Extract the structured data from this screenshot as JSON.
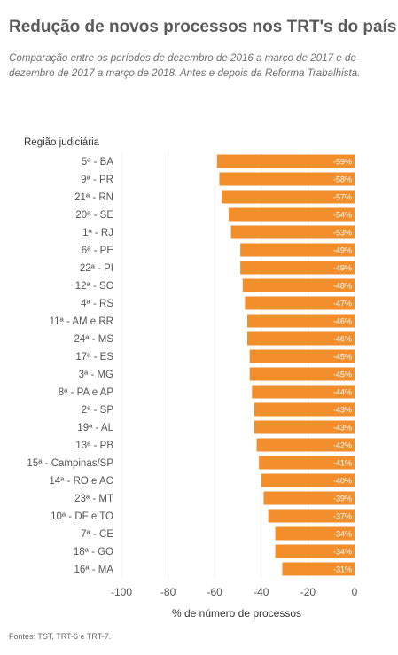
{
  "title": "Redução de novos processos nos TRT's do país",
  "subtitle": "Comparação entre os períodos de dezembro de 2016 a março de 2017 e de dezembro de 2017 a março de 2018. Antes e depois da Reforma Trabalhista.",
  "source": "Fontes: TST, TRT-6 e TRT-7.",
  "colors": {
    "bar": "#f28e2b",
    "bar_label": "#ffffff",
    "text": "#555555",
    "grid": "#eeeeee"
  },
  "chart_data": {
    "type": "bar",
    "orientation": "horizontal",
    "category_axis_title": "Região judiciária",
    "xlabel": "% de número de processos",
    "xlim": [
      -100,
      0
    ],
    "xticks": [
      -100,
      -80,
      -60,
      -40,
      -20,
      0
    ],
    "grid": true,
    "categories": [
      "5ª - BA",
      "9ª - PR",
      "21ª - RN",
      "20ª - SE",
      "1ª - RJ",
      "6ª - PE",
      "22ª - PI",
      "12ª - SC",
      "4ª - RS",
      "11ª - AM e RR",
      "24ª - MS",
      "17ª - ES",
      "3ª - MG",
      "8ª - PA e AP",
      "2ª - SP",
      "19ª - AL",
      "13ª - PB",
      "15ª - Campinas/SP",
      "14ª - RO e AC",
      "23ª - MT",
      "10ª - DF e TO",
      "7ª - CE",
      "18ª - GO",
      "16ª - MA"
    ],
    "values": [
      -59,
      -58,
      -57,
      -54,
      -53,
      -49,
      -49,
      -48,
      -47,
      -46,
      -46,
      -45,
      -45,
      -44,
      -43,
      -43,
      -42,
      -41,
      -40,
      -39,
      -37,
      -34,
      -34,
      -31
    ],
    "labels": [
      "-59%",
      "-58%",
      "-57%",
      "-54%",
      "-53%",
      "-49%",
      "-49%",
      "-48%",
      "-47%",
      "-46%",
      "-46%",
      "-45%",
      "-45%",
      "-44%",
      "-43%",
      "-43%",
      "-42%",
      "-41%",
      "-40%",
      "-39%",
      "-37%",
      "-34%",
      "-34%",
      "-31%"
    ]
  }
}
